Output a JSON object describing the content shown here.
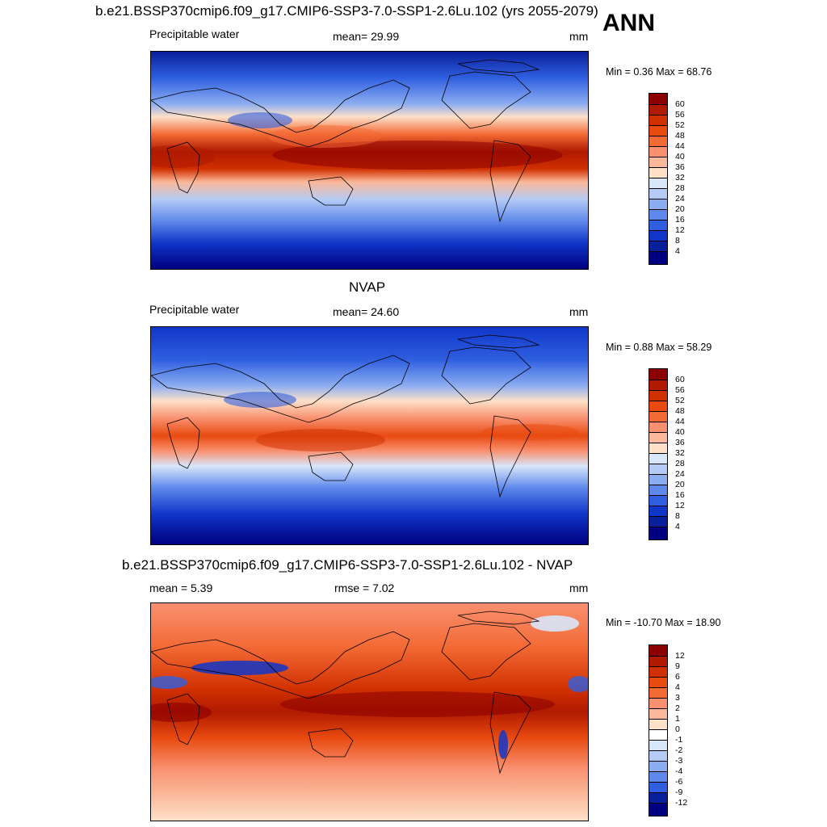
{
  "season": "ANN",
  "panels": [
    {
      "id": "model",
      "title": "b.e21.BSSP370cmip6.f09_g17.CMIP6-SSP3-7.0-SSP1-2.6Lu.102 (yrs 2055-2079)",
      "left_label": "Precipitable water",
      "center_label": "mean=  29.99",
      "units": "mm",
      "minmax": "Min =   0.36 Max =  68.76",
      "colorbar_labels": [
        "60",
        "56",
        "52",
        "48",
        "44",
        "40",
        "36",
        "32",
        "28",
        "24",
        "20",
        "16",
        "12",
        "8",
        "4"
      ],
      "colors": [
        "#8b0000",
        "#b01a00",
        "#d03000",
        "#e84a10",
        "#f36a35",
        "#f99070",
        "#fbb89a",
        "#fde0c8",
        "#d8e6fa",
        "#b4cbf5",
        "#8cadf0",
        "#5f88eb",
        "#2f5fe0",
        "#1036c8",
        "#0a1f9a",
        "#000080"
      ]
    },
    {
      "id": "obs",
      "title": "NVAP",
      "left_label": "Precipitable water",
      "center_label": "mean=  24.60",
      "units": "mm",
      "minmax": "Min =   0.88 Max =  58.29",
      "colorbar_labels": [
        "60",
        "56",
        "52",
        "48",
        "44",
        "40",
        "36",
        "32",
        "28",
        "24",
        "20",
        "16",
        "12",
        "8",
        "4"
      ],
      "colors": [
        "#8b0000",
        "#b01a00",
        "#d03000",
        "#e84a10",
        "#f36a35",
        "#f99070",
        "#fbb89a",
        "#fde0c8",
        "#d8e6fa",
        "#b4cbf5",
        "#8cadf0",
        "#5f88eb",
        "#2f5fe0",
        "#1036c8",
        "#0a1f9a",
        "#000080"
      ]
    },
    {
      "id": "diff",
      "title": "b.e21.BSSP370cmip6.f09_g17.CMIP6-SSP3-7.0-SSP1-2.6Lu.102 - NVAP",
      "left_label": "mean =   5.39",
      "center_label": "rmse =   7.02",
      "units": "mm",
      "minmax": "Min = -10.70 Max =  18.90",
      "colorbar_labels": [
        "12",
        "9",
        "6",
        "4",
        "3",
        "2",
        "1",
        "0",
        "-1",
        "-2",
        "-3",
        "-4",
        "-6",
        "-9",
        "-12"
      ],
      "colors": [
        "#8b0000",
        "#b01a00",
        "#d03000",
        "#e84a10",
        "#f36a35",
        "#f99070",
        "#fbb89a",
        "#fde0c8",
        "#ffffff",
        "#d8e6fa",
        "#b4cbf5",
        "#8cadf0",
        "#5f88eb",
        "#2f5fe0",
        "#0a1f9a",
        "#000080"
      ]
    }
  ]
}
